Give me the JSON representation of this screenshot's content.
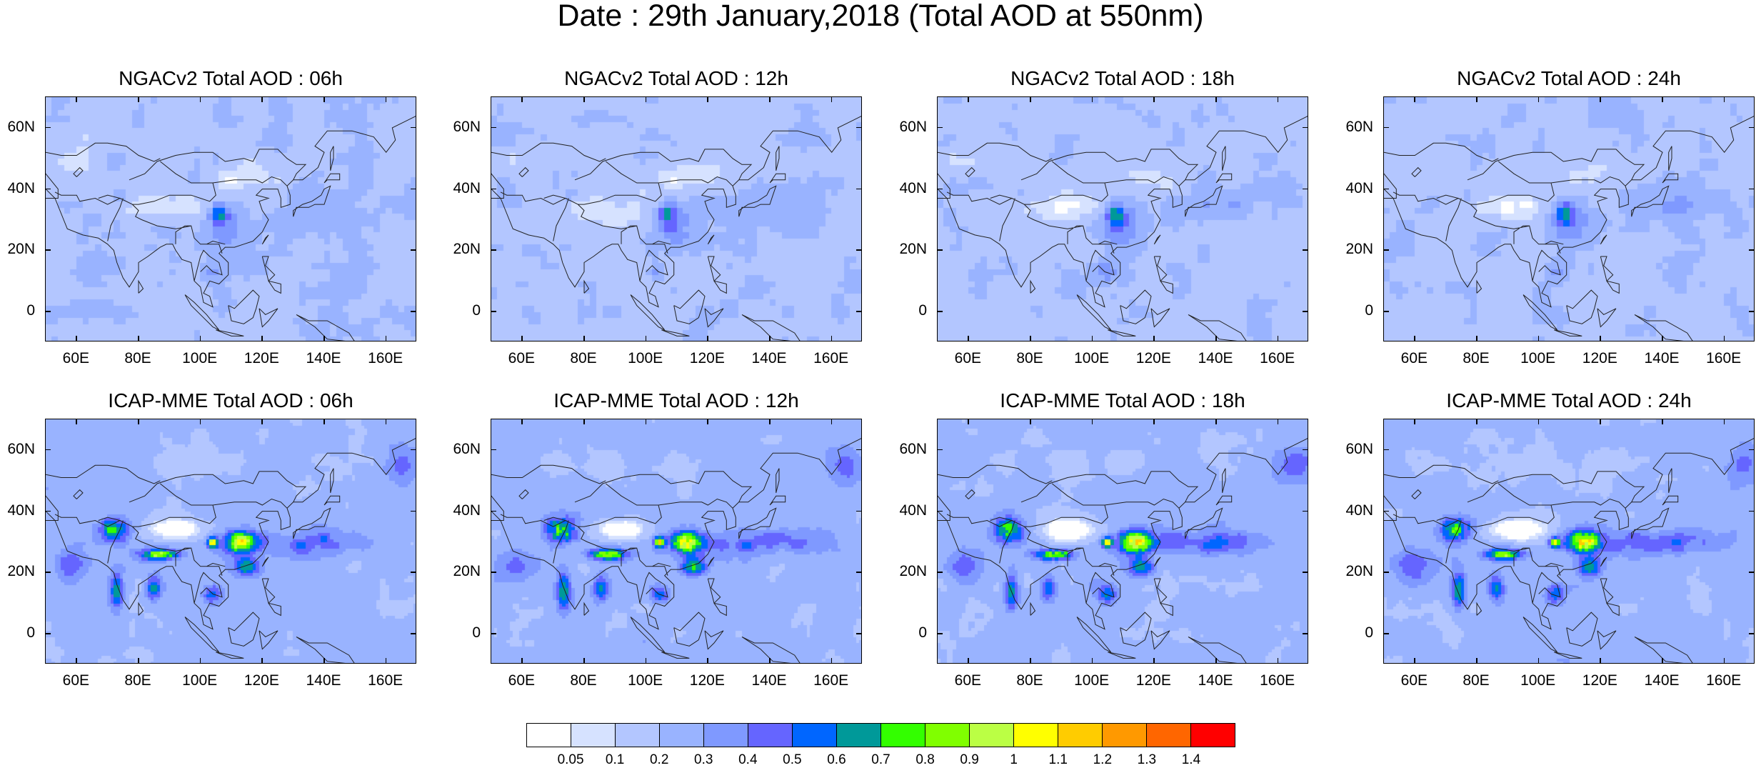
{
  "title": "Date : 29th January,2018 (Total AOD at 550nm)",
  "lat_labels": [
    "60N",
    "40N",
    "20N",
    "0"
  ],
  "lon_labels": [
    "60E",
    "80E",
    "100E",
    "120E",
    "140E",
    "160E"
  ],
  "panels": [
    {
      "title": "NGACv2 Total AOD : 06h",
      "model": "NGACv2",
      "hour": "06h"
    },
    {
      "title": "NGACv2 Total AOD : 12h",
      "model": "NGACv2",
      "hour": "12h"
    },
    {
      "title": "NGACv2 Total AOD : 18h",
      "model": "NGACv2",
      "hour": "18h"
    },
    {
      "title": "NGACv2 Total AOD : 24h",
      "model": "NGACv2",
      "hour": "24h"
    },
    {
      "title": "ICAP-MME Total AOD : 06h",
      "model": "ICAP-MME",
      "hour": "06h"
    },
    {
      "title": "ICAP-MME Total AOD : 12h",
      "model": "ICAP-MME",
      "hour": "12h"
    },
    {
      "title": "ICAP-MME Total AOD : 18h",
      "model": "ICAP-MME",
      "hour": "18h"
    },
    {
      "title": "ICAP-MME Total AOD : 24h",
      "model": "ICAP-MME",
      "hour": "24h"
    }
  ],
  "colorbar": {
    "labels": [
      "0.05",
      "0.1",
      "0.2",
      "0.3",
      "0.4",
      "0.5",
      "0.6",
      "0.7",
      "0.8",
      "0.9",
      "1",
      "1.1",
      "1.2",
      "1.3",
      "1.4"
    ],
    "colors": [
      "#ffffff",
      "#d6e2ff",
      "#b3c6ff",
      "#99b3ff",
      "#7f99ff",
      "#6565ff",
      "#0066ff",
      "#009999",
      "#33ff00",
      "#80ff00",
      "#bbff44",
      "#ffff00",
      "#ffcc00",
      "#ff9900",
      "#ff6600",
      "#ff0000"
    ]
  }
}
